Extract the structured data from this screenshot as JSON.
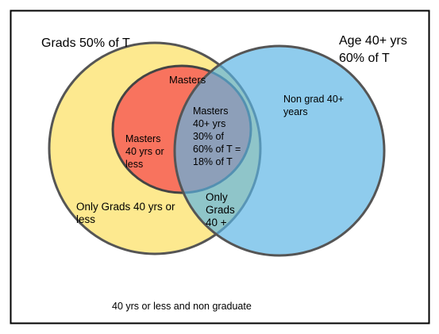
{
  "labels": [
    {
      "id": "grads",
      "lines": [
        "Grads 50% of T"
      ]
    },
    {
      "id": "age",
      "lines": [
        "Age 40+ yrs",
        "60% of T"
      ]
    },
    {
      "id": "masters",
      "lines": [
        "Masters"
      ]
    },
    {
      "id": "masters-40plus",
      "lines": [
        "Masters",
        "40+ yrs",
        "30% of",
        "60% of T =",
        "18% of T"
      ]
    },
    {
      "id": "masters-40less",
      "lines": [
        "Masters",
        "40 yrs or",
        "less"
      ]
    },
    {
      "id": "non-grad",
      "lines": [
        "Non grad 40+",
        "years"
      ]
    },
    {
      "id": "only-grads-less",
      "lines": [
        "Only Grads 40 yrs or",
        "less"
      ]
    },
    {
      "id": "only-grads-plus",
      "lines": [
        "Only",
        "Grads",
        "40 +"
      ]
    },
    {
      "id": "outside",
      "lines": [
        "40 yrs or less and non graduate"
      ]
    }
  ]
}
